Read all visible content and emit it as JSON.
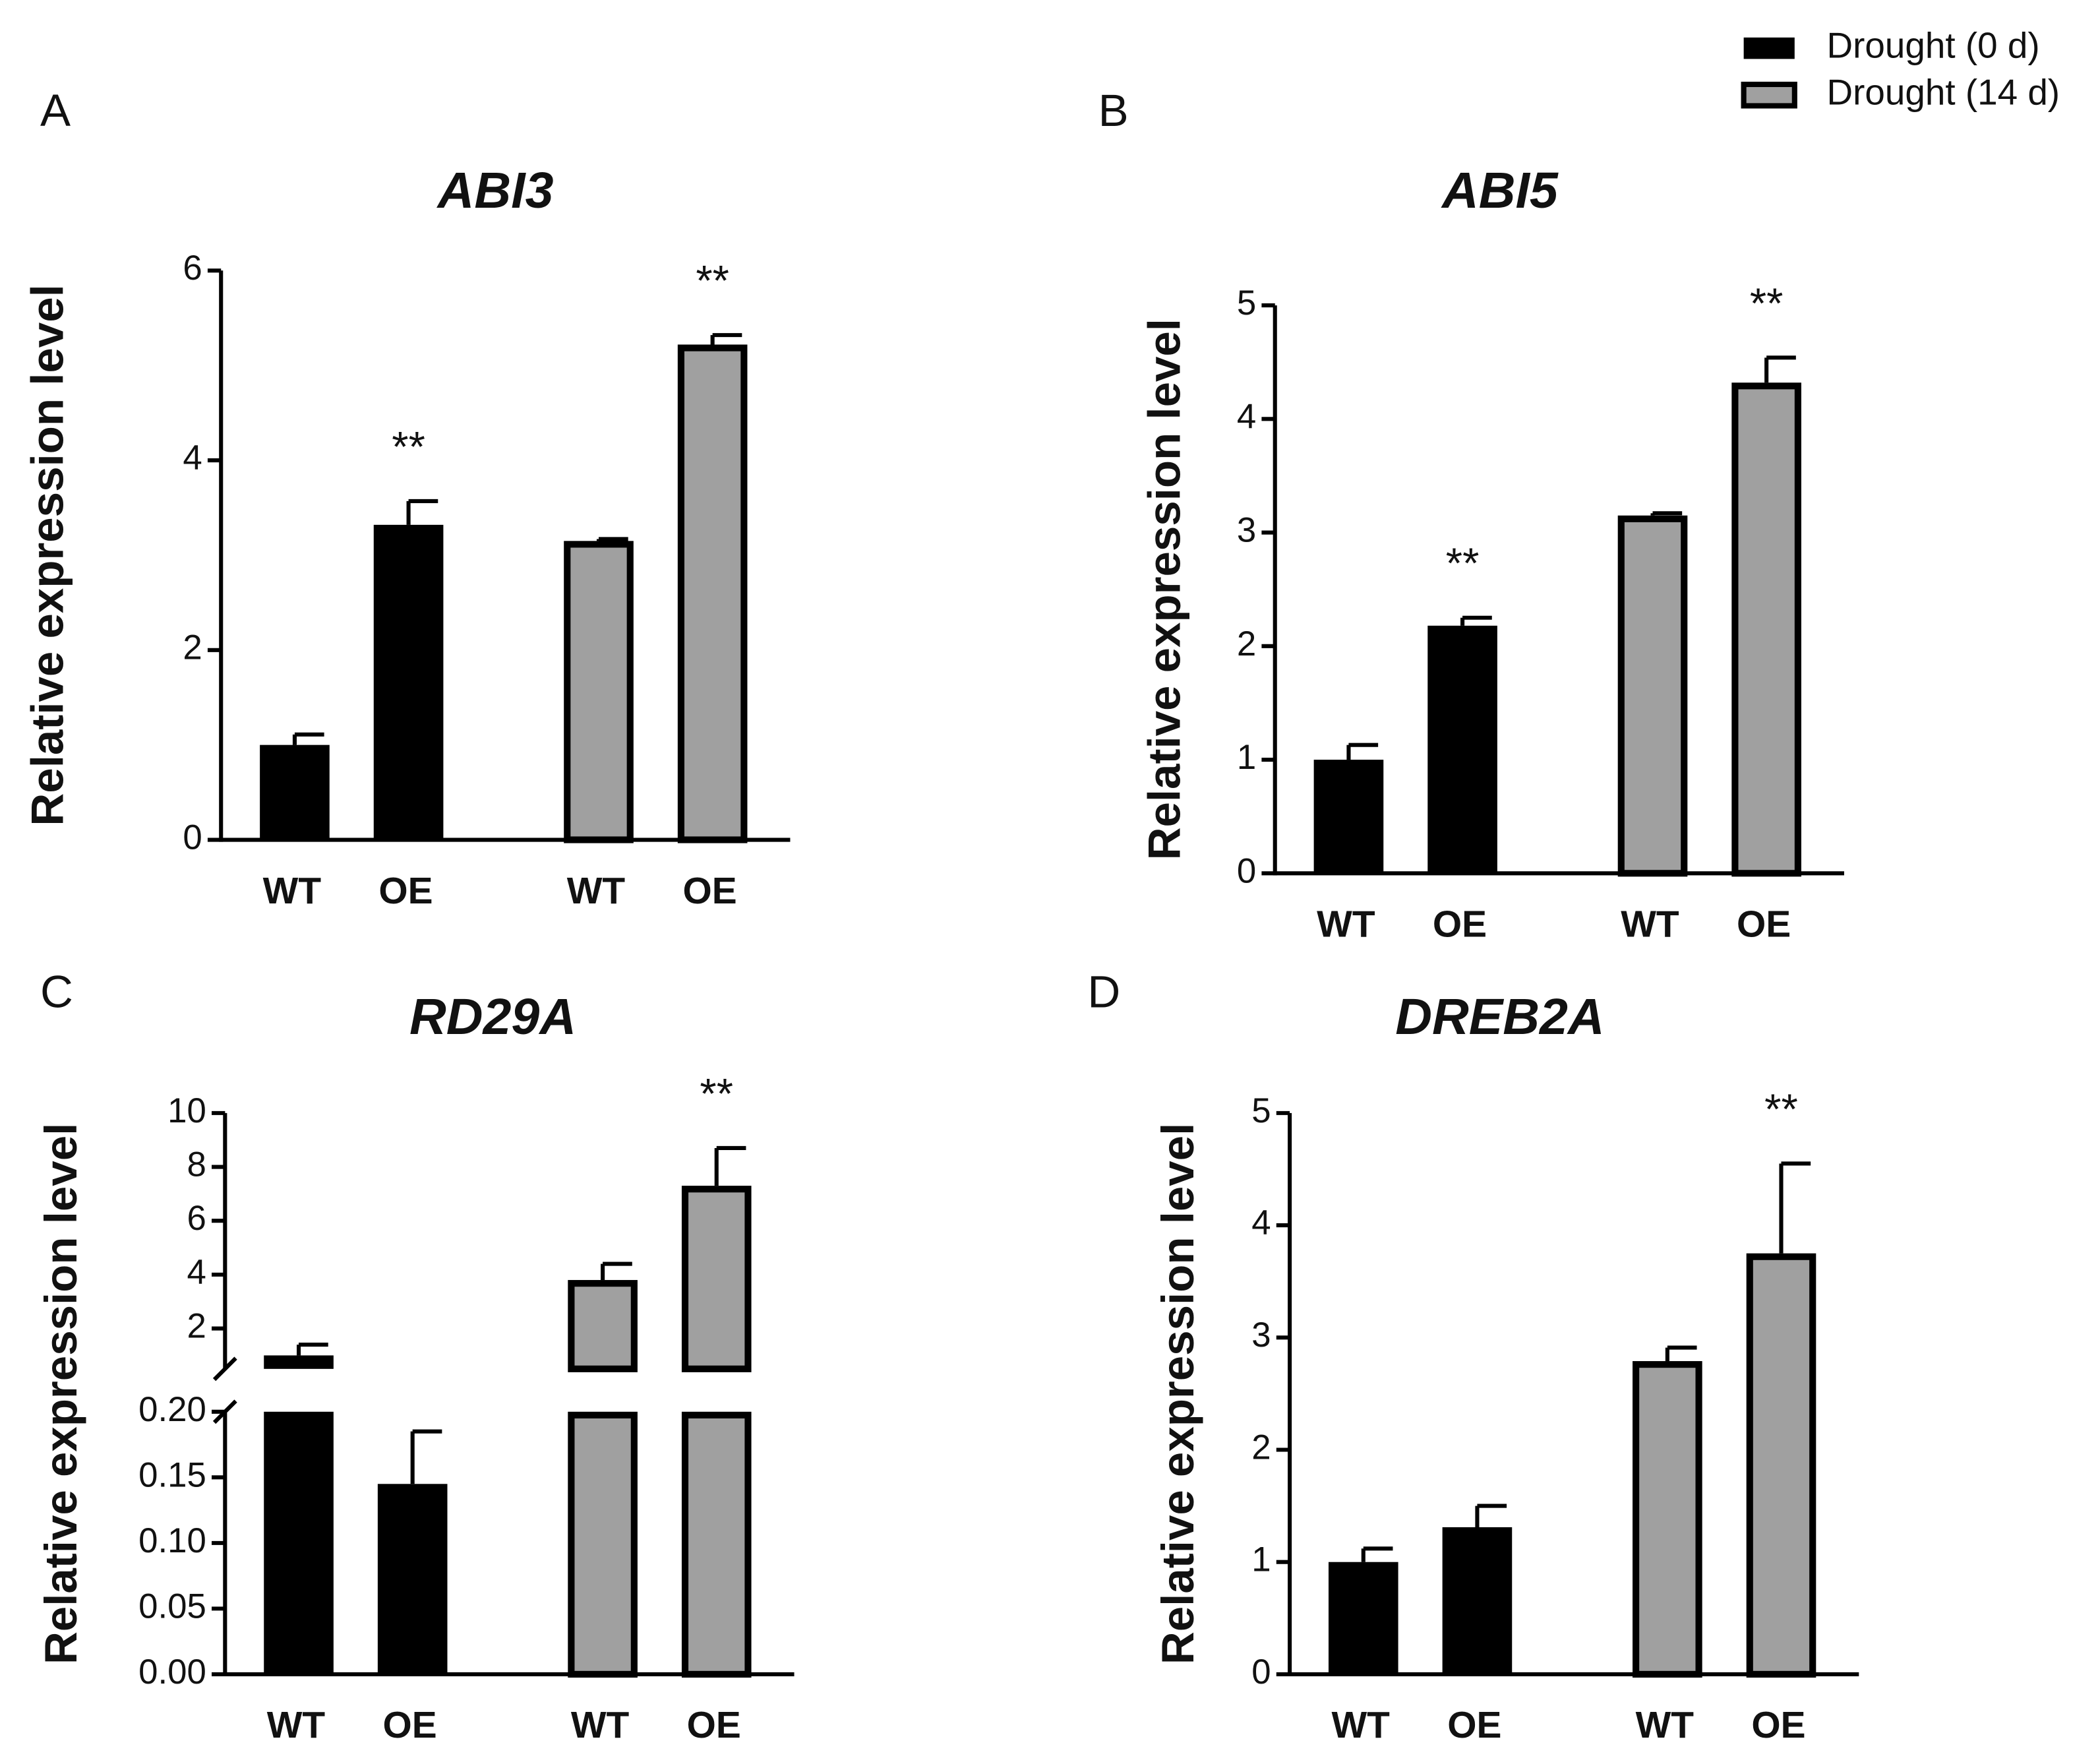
{
  "chart_data": [
    {
      "type": "bar",
      "panel": "A",
      "title": "ABI3",
      "ylabel": "Relative expression level",
      "categories": [
        "WT",
        "OE"
      ],
      "series": [
        {
          "name": "Drought (0 d)",
          "color": "#000000",
          "values": [
            1.0,
            3.32
          ],
          "errors": [
            0.11,
            0.25
          ],
          "significance": [
            null,
            "**"
          ]
        },
        {
          "name": "Drought (14 d)",
          "color": "#a0a0a0",
          "values": [
            3.15,
            5.22
          ],
          "errors": [
            0.02,
            0.1
          ],
          "significance": [
            null,
            "**"
          ]
        }
      ],
      "ylim": [
        0,
        6
      ],
      "yticks": [
        0,
        2,
        4,
        6
      ]
    },
    {
      "type": "bar",
      "panel": "B",
      "title": "ABI5",
      "ylabel": "Relative expression level",
      "categories": [
        "WT",
        "OE"
      ],
      "series": [
        {
          "color": "#000000",
          "values": [
            1.0,
            2.18
          ],
          "errors": [
            0.13,
            0.07
          ],
          "significance": [
            null,
            "**"
          ]
        },
        {
          "color": "#a0a0a0",
          "values": [
            3.15,
            4.32
          ],
          "errors": [
            0.02,
            0.22
          ],
          "significance": [
            null,
            "**"
          ]
        }
      ],
      "ylim": [
        0,
        5
      ],
      "yticks": [
        0,
        1,
        2,
        3,
        4,
        5
      ]
    },
    {
      "type": "broken-bar",
      "panel": "C",
      "title": "RD29A",
      "ylabel": "Relative expression level",
      "categories": [
        "WT",
        "OE"
      ],
      "series": [
        {
          "color": "#000000",
          "values": [
            1.0,
            0.145
          ],
          "errors": [
            0.4,
            0.04
          ]
        },
        {
          "color": "#a0a0a0",
          "values": [
            3.8,
            7.3
          ],
          "errors": [
            0.6,
            1.4
          ],
          "significance": [
            null,
            "**"
          ]
        }
      ],
      "segments": [
        {
          "ylim": [
            0,
            0.2
          ],
          "yticks": [
            {
              "value": 0,
              "label": "0.00"
            },
            {
              "value": 0.05,
              "label": "0.05"
            },
            {
              "value": 0.1,
              "label": "0.10"
            },
            {
              "value": 0.15,
              "label": "0.15"
            },
            {
              "value": 0.2,
              "label": "0.20"
            }
          ]
        },
        {
          "ylim": [
            0.5,
            10
          ],
          "yticks": [
            2,
            4,
            6,
            8,
            10
          ]
        }
      ]
    },
    {
      "type": "bar",
      "panel": "D",
      "title": "DREB2A",
      "ylabel": "Relative expression level",
      "categories": [
        "WT",
        "OE"
      ],
      "series": [
        {
          "color": "#000000",
          "values": [
            1.0,
            1.31
          ],
          "errors": [
            0.12,
            0.19
          ]
        },
        {
          "color": "#a0a0a0",
          "values": [
            2.79,
            3.75
          ],
          "errors": [
            0.12,
            0.8
          ],
          "significance": [
            null,
            "**"
          ]
        }
      ],
      "ylim": [
        0,
        5
      ],
      "yticks": [
        0,
        1,
        2,
        3,
        4,
        5
      ]
    }
  ]
}
